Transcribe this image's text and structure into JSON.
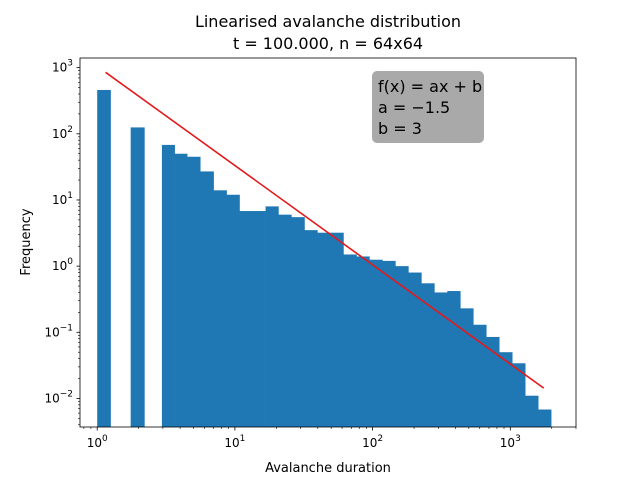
{
  "chart_data": {
    "type": "bar",
    "title": "Linearised avalanche distribution",
    "subtitle": "t = 100.000, n = 64x64",
    "xlabel": "Avalanche duration",
    "ylabel": "Frequency",
    "xscale": "log",
    "yscale": "log",
    "xlim": [
      0.75,
      3000
    ],
    "ylim": [
      0.0037,
      1400
    ],
    "xticks": [
      {
        "base": "10",
        "exp": "0",
        "value": 1
      },
      {
        "base": "10",
        "exp": "1",
        "value": 10
      },
      {
        "base": "10",
        "exp": "2",
        "value": 100
      },
      {
        "base": "10",
        "exp": "3",
        "value": 1000
      }
    ],
    "yticks": [
      {
        "base": "10",
        "exp": "−2",
        "value": 0.01
      },
      {
        "base": "10",
        "exp": "−1",
        "value": 0.1
      },
      {
        "base": "10",
        "exp": "0",
        "value": 1
      },
      {
        "base": "10",
        "exp": "1",
        "value": 10
      },
      {
        "base": "10",
        "exp": "2",
        "value": 100
      },
      {
        "base": "10",
        "exp": "3",
        "value": 1000
      }
    ],
    "grid": false,
    "bar_color": "#1f77b4",
    "fit_color": "#e31a1c",
    "bars": [
      {
        "x0": 1.0,
        "x1": 1.25,
        "value": 460
      },
      {
        "x0": 1.75,
        "x1": 2.2,
        "value": 125
      },
      {
        "x0": 2.95,
        "x1": 3.65,
        "value": 68
      },
      {
        "x0": 3.65,
        "x1": 4.5,
        "value": 50
      },
      {
        "x0": 4.5,
        "x1": 5.6,
        "value": 45
      },
      {
        "x0": 5.6,
        "x1": 7.0,
        "value": 27
      },
      {
        "x0": 7.0,
        "x1": 8.7,
        "value": 14
      },
      {
        "x0": 8.7,
        "x1": 10.8,
        "value": 12
      },
      {
        "x0": 10.8,
        "x1": 13.4,
        "value": 6.8
      },
      {
        "x0": 13.4,
        "x1": 16.7,
        "value": 6.8
      },
      {
        "x0": 16.7,
        "x1": 20.7,
        "value": 8.0
      },
      {
        "x0": 20.7,
        "x1": 25.7,
        "value": 6.0
      },
      {
        "x0": 25.7,
        "x1": 32.0,
        "value": 5.5
      },
      {
        "x0": 32.0,
        "x1": 39.7,
        "value": 3.5
      },
      {
        "x0": 39.7,
        "x1": 49.4,
        "value": 3.2
      },
      {
        "x0": 49.4,
        "x1": 61.4,
        "value": 3.2
      },
      {
        "x0": 61.4,
        "x1": 76.3,
        "value": 1.5
      },
      {
        "x0": 76.3,
        "x1": 94.8,
        "value": 1.4
      },
      {
        "x0": 94.8,
        "x1": 117.8,
        "value": 1.25
      },
      {
        "x0": 117.8,
        "x1": 146.3,
        "value": 1.2
      },
      {
        "x0": 146.3,
        "x1": 181.8,
        "value": 1.0
      },
      {
        "x0": 181.8,
        "x1": 225.9,
        "value": 0.8
      },
      {
        "x0": 225.9,
        "x1": 280.7,
        "value": 0.55
      },
      {
        "x0": 280.7,
        "x1": 348.7,
        "value": 0.4
      },
      {
        "x0": 348.7,
        "x1": 433.3,
        "value": 0.42
      },
      {
        "x0": 433.3,
        "x1": 538.3,
        "value": 0.23
      },
      {
        "x0": 538.3,
        "x1": 668.8,
        "value": 0.13
      },
      {
        "x0": 668.8,
        "x1": 831.0,
        "value": 0.085
      },
      {
        "x0": 831.0,
        "x1": 1032.5,
        "value": 0.05
      },
      {
        "x0": 1032.5,
        "x1": 1282.8,
        "value": 0.034
      },
      {
        "x0": 1282.8,
        "x1": 1594.0,
        "value": 0.011
      },
      {
        "x0": 1594.0,
        "x1": 1980.0,
        "value": 0.0068
      }
    ],
    "fit_line": {
      "x": [
        1.15,
        1750
      ],
      "y": [
        850,
        0.0143
      ]
    },
    "annotation": {
      "line1": "f(x) = ax + b",
      "line2": "a = −1.5",
      "line3": "b = 3",
      "background": "#a9a9a9",
      "placement": "top-right"
    }
  }
}
